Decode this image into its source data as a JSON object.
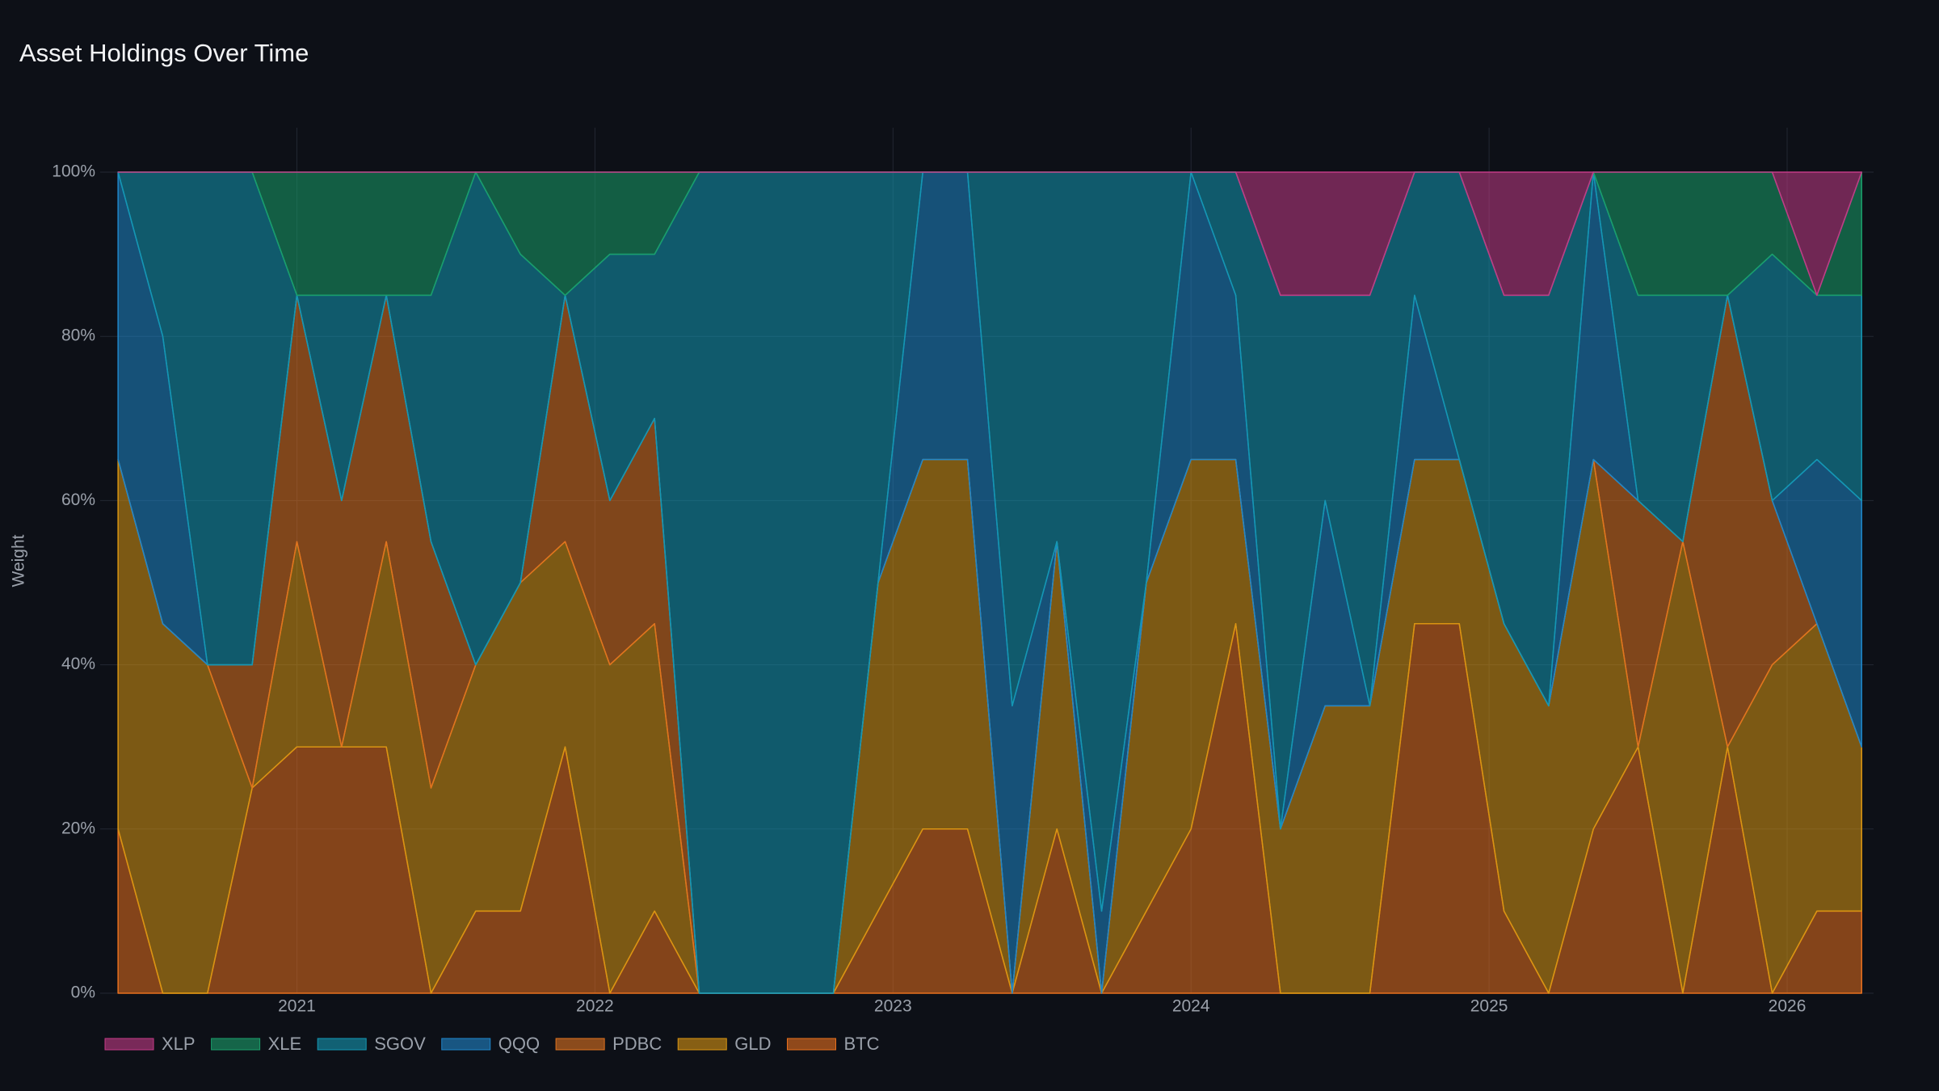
{
  "chart_data": {
    "type": "stacked-area",
    "title": "Asset Holdings Over Time",
    "y_label": "Weight",
    "x": [
      2020.4,
      2020.55,
      2020.7,
      2020.85,
      2021.0,
      2021.15,
      2021.3,
      2021.45,
      2021.6,
      2021.75,
      2021.9,
      2022.05,
      2022.2,
      2022.35,
      2022.5,
      2022.65,
      2022.8,
      2022.95,
      2023.1,
      2023.25,
      2023.4,
      2023.55,
      2023.7,
      2023.85,
      2024.0,
      2024.15,
      2024.3,
      2024.45,
      2024.6,
      2024.75,
      2024.9,
      2025.05,
      2025.2,
      2025.35,
      2025.5,
      2025.65,
      2025.8,
      2025.95,
      2026.1,
      2026.25
    ],
    "series": [
      {
        "name": "XLP",
        "color": "#c23a86",
        "values": [
          0,
          0,
          0,
          0,
          0,
          0,
          0,
          0,
          0,
          0,
          0,
          0,
          0,
          0,
          0,
          0,
          0,
          0,
          0,
          0,
          0,
          0,
          0,
          0,
          0,
          0,
          15,
          15,
          15,
          0,
          0,
          15,
          15,
          0,
          0,
          0,
          0,
          0,
          15,
          0
        ]
      },
      {
        "name": "XLE",
        "color": "#1a9e6a",
        "values": [
          0,
          0,
          0,
          0,
          15,
          15,
          15,
          15,
          0,
          10,
          15,
          10,
          10,
          0,
          0,
          0,
          0,
          0,
          0,
          0,
          0,
          0,
          0,
          0,
          0,
          0,
          0,
          0,
          0,
          0,
          0,
          0,
          0,
          0,
          15,
          15,
          15,
          10,
          0,
          15
        ]
      },
      {
        "name": "SGOV",
        "color": "#1497b3",
        "values": [
          0,
          20,
          60,
          60,
          0,
          25,
          0,
          30,
          60,
          40,
          0,
          30,
          20,
          100,
          100,
          100,
          100,
          50,
          0,
          0,
          65,
          45,
          90,
          50,
          0,
          15,
          65,
          25,
          50,
          15,
          35,
          40,
          50,
          0,
          25,
          30,
          0,
          30,
          20,
          25
        ]
      },
      {
        "name": "QQQ",
        "color": "#1f86c9",
        "values": [
          35,
          35,
          0,
          0,
          0,
          0,
          0,
          0,
          0,
          0,
          0,
          0,
          0,
          0,
          0,
          0,
          0,
          0,
          35,
          35,
          35,
          0,
          10,
          0,
          35,
          20,
          0,
          25,
          0,
          20,
          0,
          0,
          0,
          35,
          0,
          0,
          0,
          0,
          20,
          30
        ]
      },
      {
        "name": "PDBC",
        "color": "#e0731f",
        "values": [
          0,
          0,
          0,
          15,
          30,
          30,
          30,
          30,
          0,
          0,
          30,
          20,
          25,
          0,
          0,
          0,
          0,
          0,
          0,
          0,
          0,
          0,
          0,
          0,
          0,
          0,
          0,
          0,
          0,
          0,
          0,
          0,
          0,
          0,
          30,
          0,
          55,
          20,
          0,
          0
        ]
      },
      {
        "name": "GLD",
        "color": "#d99512",
        "values": [
          45,
          45,
          40,
          0,
          25,
          0,
          25,
          25,
          30,
          40,
          25,
          40,
          35,
          0,
          0,
          0,
          0,
          40,
          45,
          45,
          0,
          35,
          0,
          40,
          45,
          20,
          20,
          35,
          35,
          20,
          20,
          35,
          35,
          45,
          0,
          55,
          0,
          40,
          35,
          20
        ]
      },
      {
        "name": "BTC",
        "color": "#e8701e",
        "values": [
          20,
          0,
          0,
          25,
          30,
          30,
          30,
          0,
          10,
          10,
          30,
          0,
          10,
          0,
          0,
          0,
          0,
          10,
          20,
          20,
          0,
          20,
          0,
          10,
          20,
          45,
          0,
          0,
          0,
          45,
          45,
          10,
          0,
          20,
          30,
          0,
          30,
          0,
          10,
          10
        ]
      }
    ],
    "xlim": [
      2020.34,
      2026.29
    ],
    "xticks": [
      2021,
      2022,
      2023,
      2024,
      2025,
      2026
    ],
    "ylim": [
      0,
      100
    ],
    "yticks": [
      {
        "value": 0,
        "label": "0%"
      },
      {
        "value": 20,
        "label": "20%"
      },
      {
        "value": 40,
        "label": "40%"
      },
      {
        "value": 60,
        "label": "60%"
      },
      {
        "value": 80,
        "label": "80%"
      },
      {
        "value": 100,
        "label": "100%"
      }
    ],
    "grid": true
  }
}
